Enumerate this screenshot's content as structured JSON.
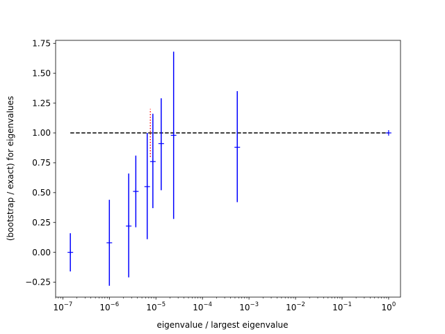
{
  "chart_data": {
    "type": "scatter",
    "title": "",
    "xlabel": "eigenvalue / largest eigenvalue",
    "ylabel": "(bootstrap / exact) for eigenvalues",
    "xscale": "log",
    "xlim": [
      7e-08,
      1.8
    ],
    "ylim": [
      -0.375,
      1.775
    ],
    "grid": false,
    "legend": "none",
    "x_ticks": [
      {
        "value": 1e-07,
        "base": "10",
        "exp": "−7"
      },
      {
        "value": 1e-06,
        "base": "10",
        "exp": "−6"
      },
      {
        "value": 1e-05,
        "base": "10",
        "exp": "−5"
      },
      {
        "value": 0.0001,
        "base": "10",
        "exp": "−4"
      },
      {
        "value": 0.001,
        "base": "10",
        "exp": "−3"
      },
      {
        "value": 0.01,
        "base": "10",
        "exp": "−2"
      },
      {
        "value": 0.1,
        "base": "10",
        "exp": "−1"
      },
      {
        "value": 1,
        "base": "10",
        "exp": "0"
      }
    ],
    "y_ticks": [
      "−0.25",
      "0.00",
      "0.25",
      "0.50",
      "0.75",
      "1.00",
      "1.25",
      "1.50",
      "1.75"
    ],
    "reference_line": {
      "y": 1.0,
      "x_from": 1.45e-07,
      "x_to": 1.0,
      "color": "#000000",
      "style": "dashed"
    },
    "series": [
      {
        "color": "#0000ff",
        "marker": "+",
        "points": [
          {
            "x": 1.45e-07,
            "y": 0.0,
            "low": -0.16,
            "high": 0.16
          },
          {
            "x": 1e-06,
            "y": 0.08,
            "low": -0.28,
            "high": 0.44
          },
          {
            "x": 2.6e-06,
            "y": 0.22,
            "low": -0.21,
            "high": 0.66
          },
          {
            "x": 3.7e-06,
            "y": 0.51,
            "low": 0.21,
            "high": 0.81
          },
          {
            "x": 6.5e-06,
            "y": 0.55,
            "low": 0.11,
            "high": 1.0
          },
          {
            "x": 8.6e-06,
            "y": 0.76,
            "low": 0.37,
            "high": 1.16
          },
          {
            "x": 1.3e-05,
            "y": 0.91,
            "low": 0.52,
            "high": 1.29
          },
          {
            "x": 2.4e-05,
            "y": 0.98,
            "low": 0.28,
            "high": 1.68
          },
          {
            "x": 0.00056,
            "y": 0.88,
            "low": 0.42,
            "high": 1.35
          },
          {
            "x": 1.0,
            "y": 1.0,
            "low": 1.0,
            "high": 1.0
          }
        ]
      }
    ],
    "extra_segment": {
      "x": 7.6e-06,
      "low": 0.8,
      "high": 1.2,
      "color": "#ff0000",
      "style": "dotted"
    }
  }
}
